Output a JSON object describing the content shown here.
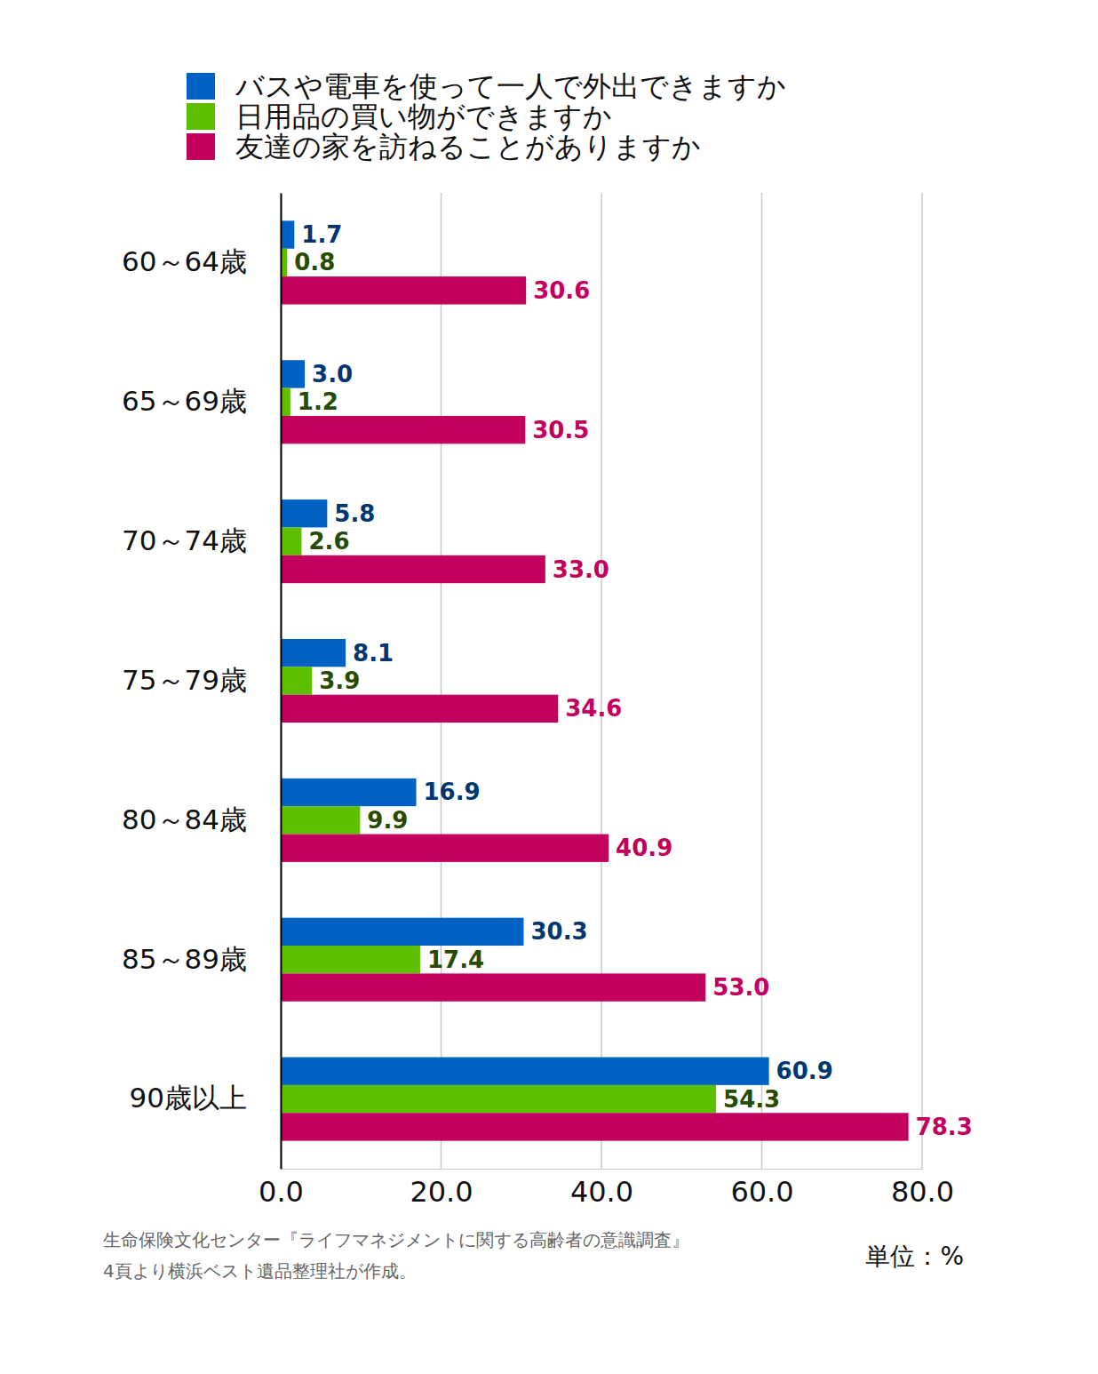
{
  "chart_data": {
    "type": "bar",
    "orientation": "horizontal",
    "categories": [
      "60～64歳",
      "65～69歳",
      "70～74歳",
      "75～79歳",
      "80～84歳",
      "85～89歳",
      "90歳以上"
    ],
    "series": [
      {
        "name": "バスや電車を使って一人で外出できますか",
        "color": "#0062c4",
        "values": [
          1.7,
          3.0,
          5.8,
          8.1,
          16.9,
          30.3,
          60.9
        ],
        "value_labels": [
          "1.7",
          "3.0",
          "5.8",
          "8.1",
          "16.9",
          "30.3",
          "60.9"
        ]
      },
      {
        "name": "日用品の買い物ができますか",
        "color": "#5dbf00",
        "values": [
          0.8,
          1.2,
          2.6,
          3.9,
          9.9,
          17.4,
          54.3
        ],
        "value_labels": [
          "0.8",
          "1.2",
          "2.6",
          "3.9",
          "9.9",
          "17.4",
          "54.3"
        ]
      },
      {
        "name": "友達の家を訪ねることがありますか",
        "color": "#c2005e",
        "values": [
          30.6,
          30.5,
          33.0,
          34.6,
          40.9,
          53.0,
          78.3
        ],
        "value_labels": [
          "30.6",
          "30.5",
          "33.0",
          "34.6",
          "40.9",
          "53.0",
          "78.3"
        ]
      }
    ],
    "xlim": [
      0,
      80
    ],
    "xticks": [
      {
        "value": 0,
        "label": "0.0"
      },
      {
        "value": 20,
        "label": "20.0"
      },
      {
        "value": 40,
        "label": "40.0"
      },
      {
        "value": 60,
        "label": "60.0"
      },
      {
        "value": 80,
        "label": "80.0"
      }
    ],
    "grid": true,
    "legend": "top",
    "data_labels": true,
    "annotations": [
      "生命保険文化センター『ライフマネジメントに関する高齢者の意識調査』",
      "4頁より横浜ベスト遺品整理社が作成。",
      "単位：%"
    ]
  }
}
